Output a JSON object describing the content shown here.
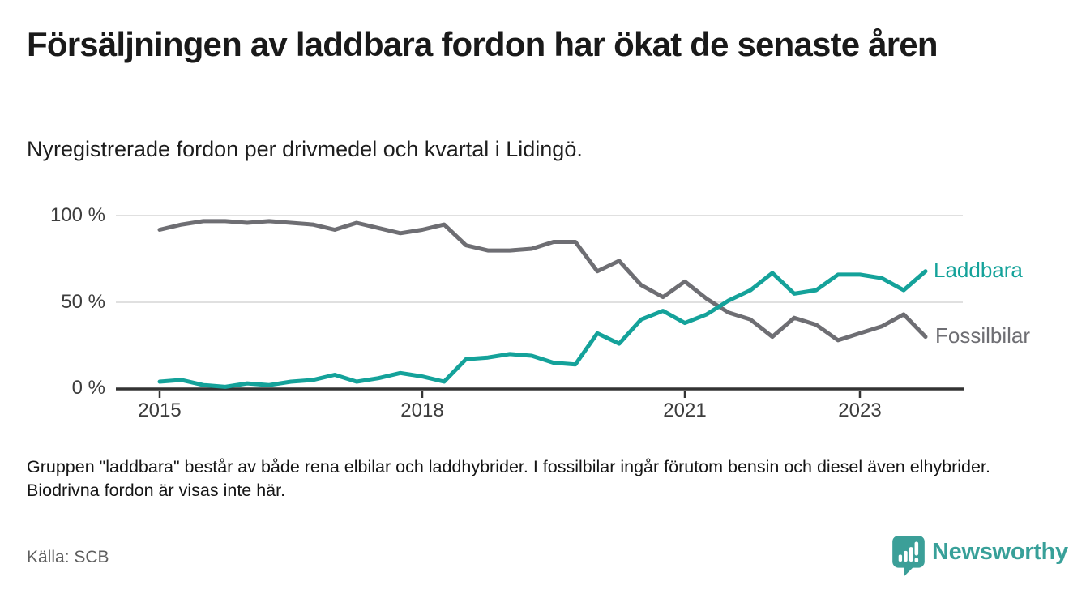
{
  "header": {
    "title": "Försäljningen av laddbara fordon har ökat de senaste åren",
    "subtitle": "Nyregistrerade fordon per drivmedel och kvartal i Lidingö."
  },
  "chart_data": {
    "type": "line",
    "x_unit": "quarter",
    "x_start": "2015 Q1",
    "x_end": "2023 Q4",
    "ylim": [
      0,
      100
    ],
    "grid": "horizontal",
    "y_tick_labels": [
      "100 %",
      "50 %",
      "0 %"
    ],
    "x_tick_labels": [
      "2015",
      "2018",
      "2021",
      "2023"
    ],
    "quarters": [
      "2015 Q1",
      "2015 Q2",
      "2015 Q3",
      "2015 Q4",
      "2016 Q1",
      "2016 Q2",
      "2016 Q3",
      "2016 Q4",
      "2017 Q1",
      "2017 Q2",
      "2017 Q3",
      "2017 Q4",
      "2018 Q1",
      "2018 Q2",
      "2018 Q3",
      "2018 Q4",
      "2019 Q1",
      "2019 Q2",
      "2019 Q3",
      "2019 Q4",
      "2020 Q1",
      "2020 Q2",
      "2020 Q3",
      "2020 Q4",
      "2021 Q1",
      "2021 Q2",
      "2021 Q3",
      "2021 Q4",
      "2022 Q1",
      "2022 Q2",
      "2022 Q3",
      "2022 Q4",
      "2023 Q1",
      "2023 Q2",
      "2023 Q3",
      "2023 Q4"
    ],
    "series": [
      {
        "name": "Laddbara",
        "color": "#14a29a",
        "values": [
          4,
          5,
          2,
          1,
          3,
          2,
          4,
          5,
          8,
          4,
          6,
          9,
          7,
          4,
          17,
          18,
          20,
          19,
          15,
          14,
          32,
          26,
          40,
          45,
          38,
          43,
          51,
          57,
          67,
          55,
          57,
          66,
          66,
          64,
          57,
          68
        ]
      },
      {
        "name": "Fossilbilar",
        "color": "#6e6e73",
        "values": [
          92,
          95,
          97,
          97,
          96,
          97,
          96,
          95,
          92,
          96,
          93,
          90,
          92,
          95,
          83,
          80,
          80,
          81,
          85,
          85,
          68,
          74,
          60,
          53,
          62,
          52,
          44,
          40,
          30,
          41,
          37,
          28,
          32,
          36,
          43,
          30
        ]
      }
    ],
    "legend_position": "line-end-labels"
  },
  "footer": {
    "note": "Gruppen \"laddbara\" består av både rena elbilar och laddhybrider. I fossilbilar ingår förutom bensin och diesel även elhybrider. Biodrivna fordon är visas inte här.",
    "source": "Källa: SCB",
    "brand": "Newsworthy"
  }
}
